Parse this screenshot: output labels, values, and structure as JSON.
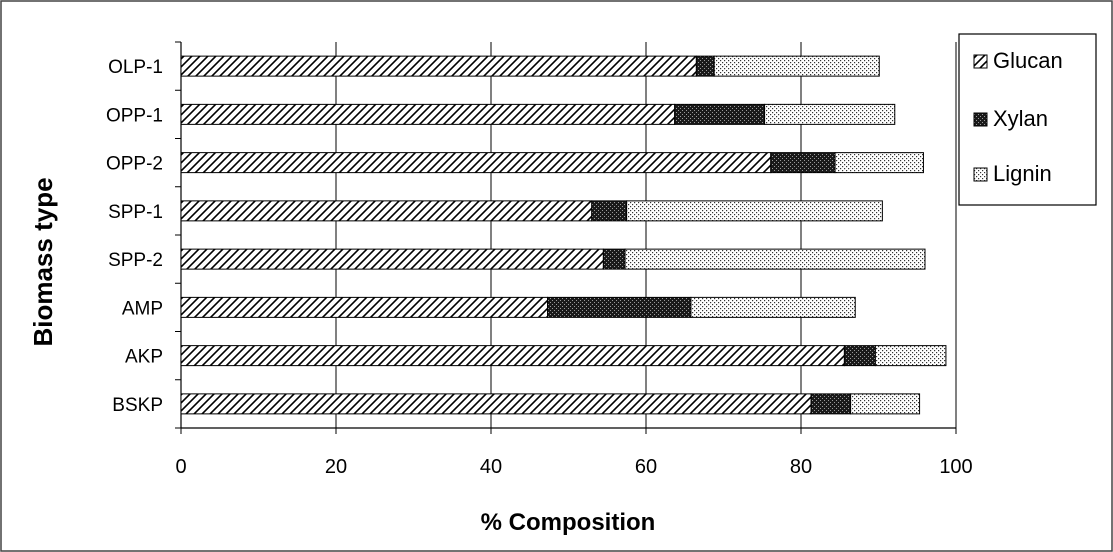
{
  "chart_data": {
    "type": "bar",
    "orientation": "horizontal",
    "stacked": true,
    "categories": [
      "OLP-1",
      "OPP-1",
      "OPP-2",
      "SPP-1",
      "SPP-2",
      "AMP",
      "AKP",
      "BSKP"
    ],
    "series": [
      {
        "name": "Glucan",
        "pattern": "diagonal-hatch",
        "color": "#000000",
        "values": [
          66.5,
          63.7,
          76.1,
          53.0,
          54.5,
          47.3,
          85.6,
          81.3
        ]
      },
      {
        "name": "Xylan",
        "pattern": "dense-crosshatch",
        "color": "#222222",
        "values": [
          2.3,
          11.6,
          8.3,
          4.5,
          2.8,
          18.5,
          4.0,
          5.1
        ]
      },
      {
        "name": "Lignin",
        "pattern": "sparse-dots",
        "color": "#888888",
        "values": [
          21.3,
          16.8,
          11.4,
          33.0,
          38.7,
          21.2,
          9.1,
          8.9
        ]
      }
    ],
    "xlabel": "% Composition",
    "ylabel": "Biomass type",
    "xlim": [
      0,
      100
    ],
    "xticks": [
      0,
      20,
      40,
      60,
      80,
      100
    ],
    "grid": "vertical",
    "legend_position": "top-right"
  }
}
